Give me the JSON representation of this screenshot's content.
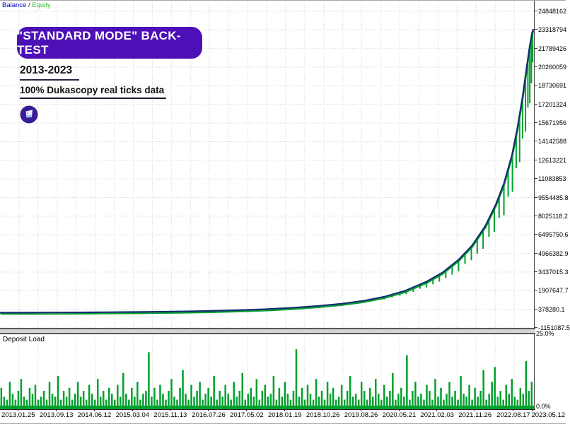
{
  "legend": {
    "balance": "Balance",
    "sep": " / ",
    "equity": "Equity"
  },
  "overlay": {
    "banner": "\"STANDARD MODE\" BACK-TEST",
    "period": "2013-2023",
    "subtitle": "100% Dukascopy real ticks data",
    "logo": "purple-circle-logo"
  },
  "deposit_panel": {
    "title": "Deposit Load",
    "max_label": "25.0%",
    "min_label": "0.0%"
  },
  "colors": {
    "banner_bg": "#4C10B6",
    "banner_text": "#ffffff",
    "balance_text": "#0000C8",
    "equity_text": "#2EB82E",
    "balance_line": "#12306E",
    "equity_green": "#00A02C",
    "deposit_green": "#00A02C",
    "grid": "#d4d4d4",
    "axis": "#404040",
    "logo_bg": "#3A1D96"
  },
  "chart_data": {
    "type": "line",
    "title": "\"STANDARD MODE\" BACK-TEST",
    "subtitle": "100% Dukascopy real ticks data, 2013-2023",
    "legend_position": "top-left",
    "grid": true,
    "y_axis": {
      "side": "right",
      "top_value": 24848162,
      "bottom_value": -1151087.5,
      "ticks": [
        "24848162",
        "23318794",
        "21789426",
        "20260059",
        "18730691",
        "17201324",
        "15671956",
        "14142588",
        "12613221",
        "11083853",
        "9554485.8",
        "8025118.2",
        "6495750.6",
        "4966382.9",
        "3437015.3",
        "1907647.7",
        "378280.1",
        "-1151087.5"
      ]
    },
    "x_axis": {
      "ticks": [
        "2013.01.25",
        "2013.09.13",
        "2014.06.12",
        "2015.03.04",
        "2015.11.13",
        "2016.07.26",
        "2017.05.02",
        "2018.01.19",
        "2018.10.26",
        "2019.08.26",
        "2020.05.21",
        "2021.02.03",
        "2021.11.26",
        "2022.08.17",
        "2023.05.12"
      ]
    },
    "series": [
      {
        "name": "Balance",
        "type": "line"
      },
      {
        "name": "Equity",
        "type": "line"
      },
      {
        "name": "Deposit Load",
        "type": "bar",
        "panel": "bottom",
        "range_pct": [
          0,
          25
        ]
      }
    ],
    "balance_series": [
      [
        0,
        100000
      ],
      [
        0.05,
        105000
      ],
      [
        0.1,
        112000
      ],
      [
        0.15,
        122000
      ],
      [
        0.2,
        135000
      ],
      [
        0.25,
        152000
      ],
      [
        0.3,
        175000
      ],
      [
        0.35,
        205000
      ],
      [
        0.4,
        248000
      ],
      [
        0.45,
        305000
      ],
      [
        0.5,
        385000
      ],
      [
        0.55,
        500000
      ],
      [
        0.6,
        665000
      ],
      [
        0.64,
        830000
      ],
      [
        0.68,
        1060000
      ],
      [
        0.72,
        1400000
      ],
      [
        0.76,
        1900000
      ],
      [
        0.8,
        2650000
      ],
      [
        0.83,
        3400000
      ],
      [
        0.86,
        4450000
      ],
      [
        0.885,
        5600000
      ],
      [
        0.91,
        7200000
      ],
      [
        0.93,
        9000000
      ],
      [
        0.945,
        10700000
      ],
      [
        0.96,
        13000000
      ],
      [
        0.97,
        15200000
      ],
      [
        0.98,
        17800000
      ],
      [
        0.9875,
        20200000
      ],
      [
        0.9935,
        22000000
      ],
      [
        0.998,
        23100000
      ],
      [
        1,
        23400000
      ]
    ],
    "equity_spikes": [
      [
        0.42,
        25000
      ],
      [
        0.44,
        20000
      ],
      [
        0.46,
        30000
      ],
      [
        0.48,
        28000
      ],
      [
        0.5,
        40000
      ],
      [
        0.52,
        38000
      ],
      [
        0.54,
        55000
      ],
      [
        0.56,
        50000
      ],
      [
        0.58,
        70000
      ],
      [
        0.6,
        80000
      ],
      [
        0.615,
        75000
      ],
      [
        0.63,
        100000
      ],
      [
        0.645,
        95000
      ],
      [
        0.66,
        130000
      ],
      [
        0.675,
        120000
      ],
      [
        0.69,
        160000
      ],
      [
        0.705,
        180000
      ],
      [
        0.72,
        210000
      ],
      [
        0.735,
        240000
      ],
      [
        0.75,
        280000
      ],
      [
        0.762,
        320000
      ],
      [
        0.775,
        380000
      ],
      [
        0.788,
        360000
      ],
      [
        0.8,
        480000
      ],
      [
        0.812,
        520000
      ],
      [
        0.824,
        600000
      ],
      [
        0.836,
        680000
      ],
      [
        0.848,
        800000
      ],
      [
        0.86,
        950000
      ],
      [
        0.872,
        900000
      ],
      [
        0.884,
        1150000
      ],
      [
        0.895,
        1300000
      ],
      [
        0.906,
        1600000
      ],
      [
        0.917,
        1500000
      ],
      [
        0.927,
        2000000
      ],
      [
        0.936,
        1800000
      ],
      [
        0.945,
        2600000
      ],
      [
        0.953,
        2300000
      ],
      [
        0.961,
        3200000
      ],
      [
        0.968,
        2800000
      ],
      [
        0.9745,
        3900000
      ],
      [
        0.98,
        3400000
      ],
      [
        0.9855,
        4600000
      ],
      [
        0.99,
        4000000
      ],
      [
        0.9935,
        4700000
      ],
      [
        0.9965,
        3800000
      ],
      [
        0.999,
        2600000
      ]
    ],
    "deposit_bars_pct": [
      6,
      3,
      2,
      8,
      4,
      2,
      5,
      9,
      3,
      2,
      6,
      4,
      7,
      2,
      3,
      5,
      2,
      8,
      4,
      3,
      10,
      2,
      5,
      3,
      6,
      2,
      4,
      8,
      3,
      5,
      2,
      7,
      4,
      2,
      9,
      3,
      5,
      2,
      6,
      4,
      2,
      7,
      3,
      11,
      4,
      2,
      6,
      3,
      8,
      2,
      4,
      5,
      18,
      3,
      6,
      2,
      7,
      4,
      2,
      5,
      9,
      3,
      2,
      6,
      12,
      4,
      2,
      7,
      3,
      5,
      8,
      2,
      4,
      6,
      3,
      10,
      2,
      5,
      3,
      7,
      4,
      2,
      8,
      3,
      5,
      11,
      2,
      4,
      6,
      3,
      9,
      2,
      5,
      7,
      3,
      4,
      10,
      2,
      6,
      3,
      8,
      4,
      2,
      5,
      19,
      3,
      6,
      2,
      7,
      4,
      2,
      9,
      3,
      5,
      2,
      8,
      4,
      6,
      2,
      3,
      7,
      2,
      5,
      10,
      3,
      4,
      2,
      8,
      5,
      2,
      6,
      3,
      9,
      4,
      2,
      7,
      3,
      5,
      11,
      2,
      4,
      6,
      3,
      17,
      2,
      5,
      8,
      3,
      4,
      2,
      7,
      5,
      2,
      9,
      3,
      6,
      2,
      4,
      8,
      3,
      5,
      2,
      10,
      4,
      3,
      7,
      2,
      6,
      3,
      5,
      12,
      2,
      4,
      8,
      13,
      3,
      5,
      2,
      7,
      4,
      9,
      3,
      2,
      6,
      4,
      15,
      5,
      8
    ]
  }
}
